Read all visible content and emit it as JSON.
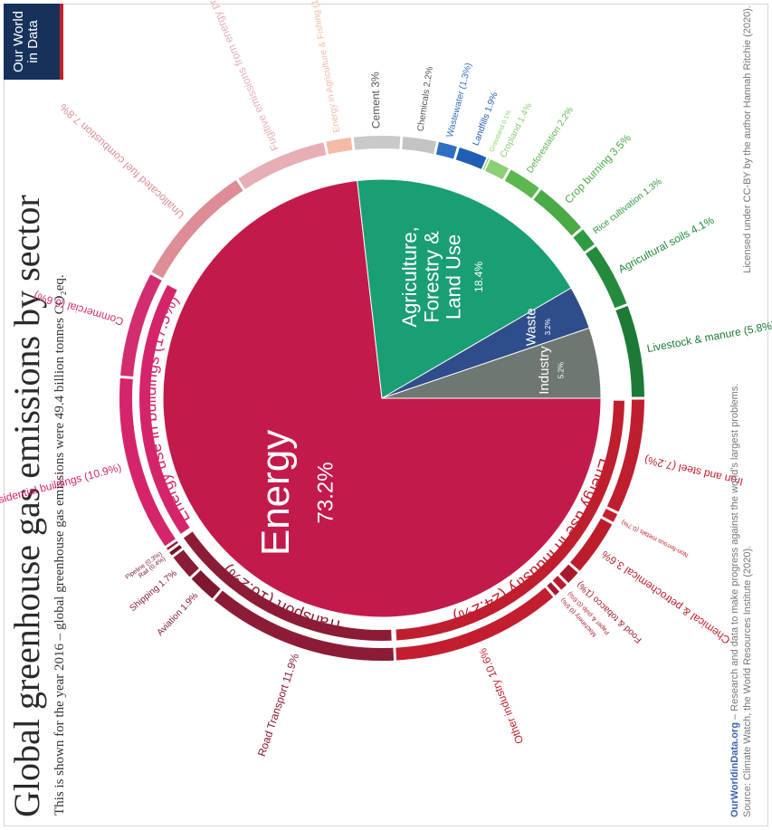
{
  "header": {
    "title": "Global greenhouse gas emissions by sector",
    "subtitle": "This is shown for the year 2016 – global greenhouse gas emissions were 49.4 billion tonnes CO₂eq."
  },
  "logo": {
    "line1": "Our World",
    "line2": "in Data"
  },
  "footer": {
    "owid": "OurWorldinData.org",
    "mission": " – Research and data to make progress against the world's largest problems.",
    "source": "Source: Climate Watch, the World Resources Institute (2020).",
    "license_pre": "Licensed under ",
    "license_link": "CC-BY",
    "license_post": " by the author Hannah Ritchie (2020)."
  },
  "colors": {
    "energy": "#c31a4c",
    "agriculture": "#1a9e74",
    "waste": "#2f4d8a",
    "industry": "#6f7772",
    "industry_ring": "#bf1e2e",
    "transport_ring": "#8c1c35",
    "buildings_ring": "#d4256a"
  },
  "chart_data": {
    "type": "pie",
    "title": "Global greenhouse gas emissions by sector",
    "unit": "%",
    "inner": [
      {
        "name": "Energy",
        "value": 73.2,
        "label": "73.2%"
      },
      {
        "name": "Agriculture, Forestry & Land Use",
        "value": 18.4,
        "label": "18.4%"
      },
      {
        "name": "Waste",
        "value": 3.2,
        "label": "3.2%"
      },
      {
        "name": "Industry",
        "value": 5.2,
        "label": "5.2%"
      }
    ],
    "middle": [
      {
        "name": "Energy use in Industry",
        "value": 24.2,
        "label": "Energy use in Industry (24.2%)"
      },
      {
        "name": "Transport",
        "value": 16.2,
        "label": "Transport (16.2%)"
      },
      {
        "name": "Energy use in buildings",
        "value": 17.5,
        "label": "Energy use in buildings (17.5%)"
      }
    ],
    "outer": [
      {
        "name": "Iron and steel",
        "value": 7.2,
        "label": "Iron and steel (7.2%)"
      },
      {
        "name": "Non-ferrous metals",
        "value": 0.7,
        "label": "Non-ferrous metals (0.7%)"
      },
      {
        "name": "Chemical & petrochemical",
        "value": 3.6,
        "label": "Chemical & petrochemical 3.6%"
      },
      {
        "name": "Food & tobacco",
        "value": 1.0,
        "label": "Food & tobacco (1%)"
      },
      {
        "name": "Paper & pulp",
        "value": 0.6,
        "label": "Paper & pulp (0.6%)"
      },
      {
        "name": "Machinery",
        "value": 0.5,
        "label": "Machinery (0.5%)"
      },
      {
        "name": "Other industry",
        "value": 10.6,
        "label": "Other industry 10.6%"
      },
      {
        "name": "Road Transport",
        "value": 11.9,
        "label": "Road Transport 11.9%"
      },
      {
        "name": "Aviation",
        "value": 1.9,
        "label": "Aviation 1.9%"
      },
      {
        "name": "Shipping",
        "value": 1.7,
        "label": "Shipping 1.7%"
      },
      {
        "name": "Rail",
        "value": 0.4,
        "label": "Rail (0.4%)"
      },
      {
        "name": "Pipeline",
        "value": 0.3,
        "label": "Pipeline (0.3%)"
      },
      {
        "name": "Residential buildings",
        "value": 10.9,
        "label": "Residential buildings (10.9%)"
      },
      {
        "name": "Commercial",
        "value": 6.6,
        "label": "Commercial (6.6%)"
      },
      {
        "name": "Unallocated fuel combustion",
        "value": 7.8,
        "label": "Unallocated fuel combustion 7.8%"
      },
      {
        "name": "Fugitive emissions from energy production",
        "value": 5.8,
        "label": "Fugitive emissions from energy production 5.8%"
      },
      {
        "name": "Energy in Agriculture & Fishing",
        "value": 1.7,
        "label": "Energy in Agriculture & Fishing (1.7%)"
      },
      {
        "name": "Cement",
        "value": 3.0,
        "label": "Cement 3%"
      },
      {
        "name": "Chemicals",
        "value": 2.2,
        "label": "Chemicals 2.2%"
      },
      {
        "name": "Wastewater",
        "value": 1.3,
        "label": "Wastewater (1.3%)"
      },
      {
        "name": "Landfills",
        "value": 1.9,
        "label": "Landfills 1.9%"
      },
      {
        "name": "Grassland",
        "value": 0.1,
        "label": "Grassland 0.1%"
      },
      {
        "name": "Cropland",
        "value": 1.4,
        "label": "Cropland 1.4%"
      },
      {
        "name": "Deforestation",
        "value": 2.2,
        "label": "Deforestation 2.2%"
      },
      {
        "name": "Crop burning",
        "value": 3.5,
        "label": "Crop burning 3.5%"
      },
      {
        "name": "Rice cultivation",
        "value": 1.3,
        "label": "Rice cultivation 1.3%"
      },
      {
        "name": "Agricultural soils",
        "value": 4.1,
        "label": "Agricultural soils 4.1%"
      },
      {
        "name": "Livestock & manure",
        "value": 5.8,
        "label": "Livestock & manure (5.8%)"
      }
    ]
  }
}
